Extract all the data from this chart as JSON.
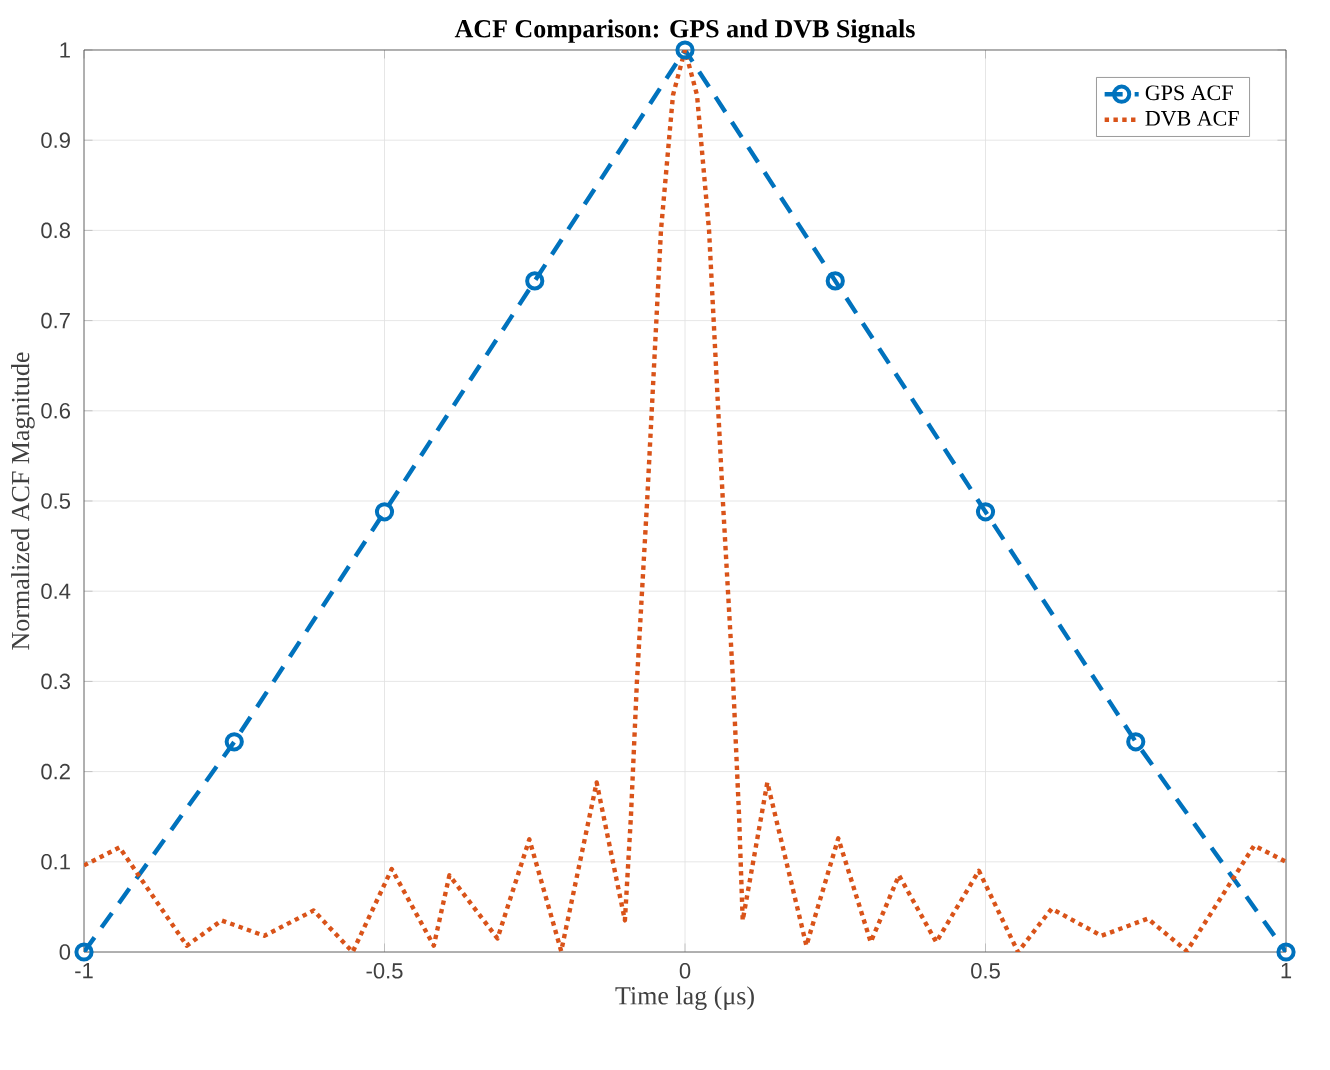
{
  "chart_data": {
    "type": "line",
    "title": "ACF Comparison: GPS and DVB Signals",
    "xlabel": "Time lag (μs)",
    "ylabel": "Normalized ACF Magnitude",
    "xlim": [
      -1,
      1
    ],
    "ylim": [
      0,
      1
    ],
    "xticks": [
      -1,
      -0.5,
      0,
      0.5,
      1
    ],
    "yticks": [
      0,
      0.1,
      0.2,
      0.3,
      0.4,
      0.5,
      0.6,
      0.7,
      0.8,
      0.9,
      1
    ],
    "grid": true,
    "legend": "top right",
    "series": [
      {
        "name": "GPS ACF",
        "color": "#0072bd",
        "line_style": "dashed",
        "marker": "circle",
        "x": [
          -1,
          -0.75,
          -0.5,
          -0.25,
          0,
          0.25,
          0.5,
          0.75,
          1
        ],
        "values": [
          0,
          0.233,
          0.488,
          0.744,
          1,
          0.744,
          0.488,
          0.233,
          0
        ]
      },
      {
        "name": "DVB ACF",
        "color": "#d95319",
        "line_style": "dotted",
        "marker": "none",
        "x": [
          -1,
          -0.941,
          -0.829,
          -0.771,
          -0.7,
          -0.618,
          -0.553,
          -0.488,
          -0.418,
          -0.392,
          -0.312,
          -0.259,
          -0.206,
          -0.147,
          -0.1,
          -0.09,
          -0.08,
          -0.063,
          -0.04,
          -0.02,
          0,
          0.02,
          0.04,
          0.063,
          0.08,
          0.09,
          0.096,
          0.137,
          0.202,
          0.255,
          0.309,
          0.356,
          0.418,
          0.489,
          0.554,
          0.61,
          0.693,
          0.77,
          0.835,
          0.947,
          1
        ],
        "values": [
          0.096,
          0.116,
          0.007,
          0.035,
          0.018,
          0.046,
          0,
          0.092,
          0.007,
          0.085,
          0.015,
          0.125,
          0.001,
          0.188,
          0.035,
          0.15,
          0.3,
          0.5,
          0.8,
          0.95,
          1,
          0.95,
          0.8,
          0.5,
          0.3,
          0.15,
          0.035,
          0.188,
          0.007,
          0.126,
          0.011,
          0.085,
          0.011,
          0.09,
          0,
          0.048,
          0.018,
          0.037,
          0.001,
          0.118,
          0.1
        ]
      }
    ]
  }
}
